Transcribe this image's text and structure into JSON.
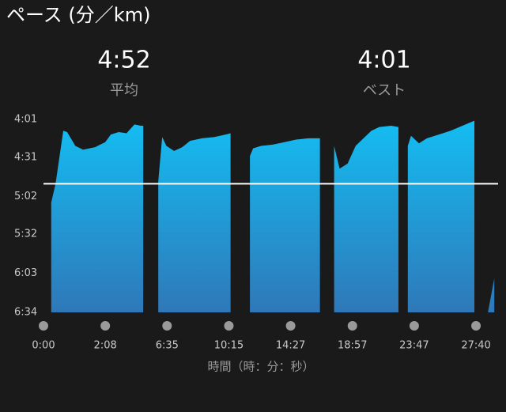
{
  "chart_data": {
    "type": "area",
    "title": "ペース (分／km)",
    "x_label": "時間（時：分：秒）",
    "color_top": "#14bdf2",
    "color_bottom": "#2f78b8",
    "average": {
      "value": 292,
      "label": "4:52",
      "caption": "平均",
      "color": "#ffffff"
    },
    "best": {
      "value": 241,
      "label": "4:01",
      "caption": "ベスト"
    },
    "x": [
      16,
      25,
      41,
      49,
      66,
      82,
      107,
      128,
      152,
      186,
      220,
      254,
      282,
      292,
      null,
      357,
      374,
      392,
      420,
      449,
      477,
      519,
      562,
      604,
      622,
      null,
      701,
      714,
      746,
      794,
      842,
      891,
      943,
      995,
      null,
      1057,
      1081,
      1116,
      1152,
      1189,
      1226,
      1263,
      1319,
      1353,
      null,
      1397,
      1412,
      1445,
      1475,
      1520,
      1564,
      1609,
      1654,
      null,
      1705,
      1729
    ],
    "values": [
      307,
      292,
      250,
      251,
      262,
      265,
      263,
      259,
      253,
      251,
      252,
      245,
      246,
      246,
      null,
      290,
      255,
      262,
      266,
      263,
      258,
      256,
      255,
      253,
      252,
      null,
      270,
      264,
      262,
      261,
      259,
      257,
      256,
      256,
      null,
      262,
      280,
      276,
      262,
      256,
      250,
      247,
      246,
      247,
      null,
      262,
      254,
      260,
      256,
      253,
      250,
      246,
      242,
      null,
      394,
      367
    ],
    "ylim": [
      394,
      241
    ],
    "yticks": [
      {
        "value": 241,
        "label": "4:01"
      },
      {
        "value": 271,
        "label": "4:31"
      },
      {
        "value": 302,
        "label": "5:02"
      },
      {
        "value": 332,
        "label": "5:32"
      },
      {
        "value": 363,
        "label": "6:03"
      },
      {
        "value": 394,
        "label": "6:34"
      }
    ],
    "xticks": [
      {
        "value": 0,
        "label": "0:00"
      },
      {
        "value": 128,
        "label": "2:08"
      },
      {
        "value": 395,
        "label": "6:35"
      },
      {
        "value": 615,
        "label": "10:15"
      },
      {
        "value": 867,
        "label": "14:27"
      },
      {
        "value": 1137,
        "label": "18:57"
      },
      {
        "value": 1427,
        "label": "23:47"
      },
      {
        "value": 1660,
        "label": "27:40"
      }
    ]
  }
}
